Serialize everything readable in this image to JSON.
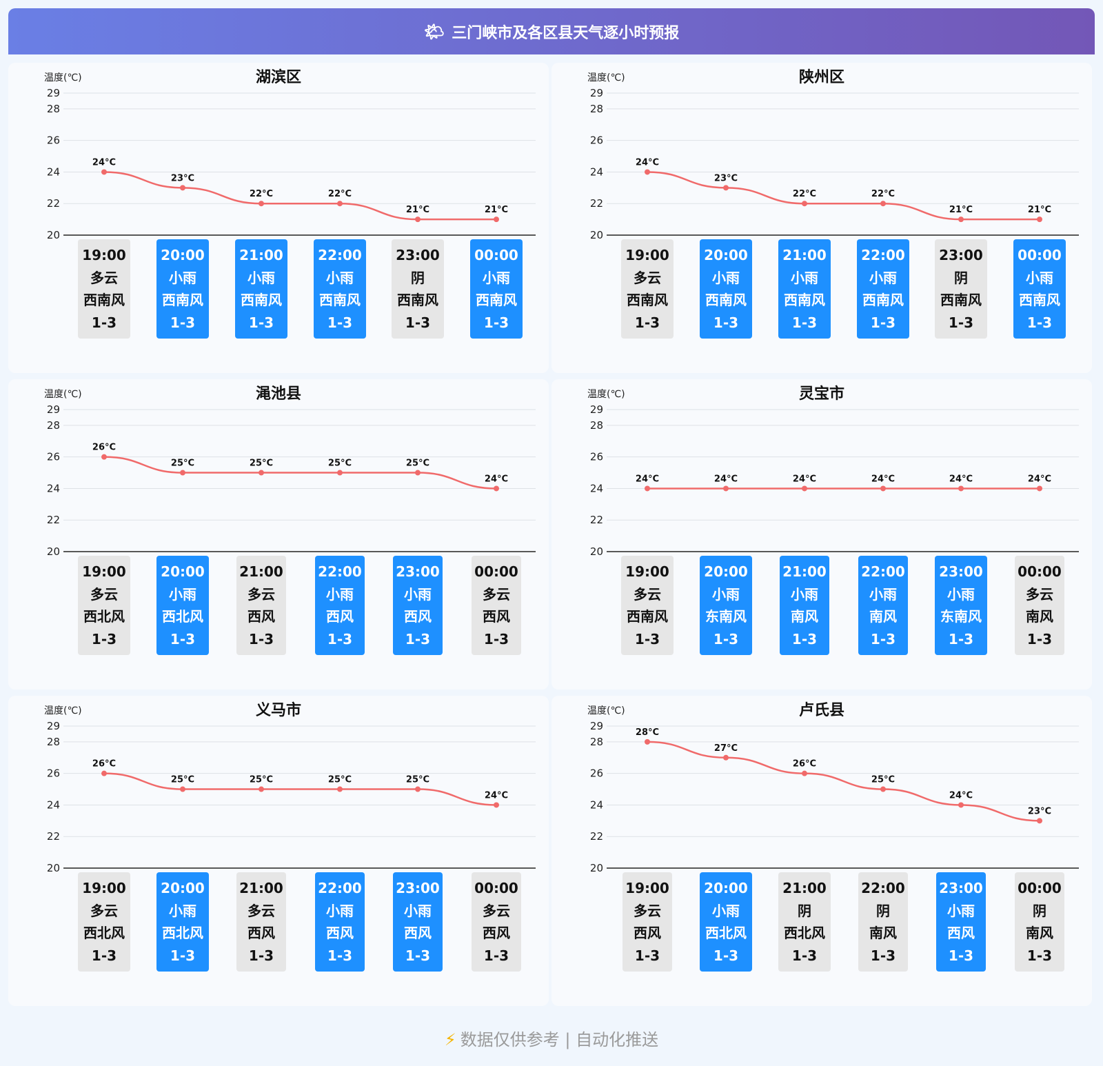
{
  "header": {
    "icon": "sun-cloud-icon",
    "title": "三门峡市及各区县天气逐小时预报"
  },
  "footer": {
    "icon": "lightning-icon",
    "text": "数据仅供参考 | 自动化推送"
  },
  "colors": {
    "line": "#f06a6a",
    "rain_tile": "#1e90ff",
    "other_tile": "#e6e6e6",
    "header_start": "#6a7fe5",
    "header_end": "#7357b7"
  },
  "chart_data": [
    {
      "type": "line",
      "title": "湖滨区",
      "ylabel": "温度(℃)",
      "ylim": [
        20,
        29
      ],
      "yticks": [
        20,
        22,
        24,
        26,
        28,
        29
      ],
      "x": [
        "19:00",
        "20:00",
        "21:00",
        "22:00",
        "23:00",
        "00:00"
      ],
      "values": [
        24,
        23,
        22,
        22,
        21,
        21
      ],
      "point_labels": [
        "24°C",
        "23°C",
        "22°C",
        "22°C",
        "21°C",
        "21°C"
      ],
      "weather": [
        "多云",
        "小雨",
        "小雨",
        "小雨",
        "阴",
        "小雨"
      ],
      "wind": [
        "西南风",
        "西南风",
        "西南风",
        "西南风",
        "西南风",
        "西南风"
      ],
      "wind_level": [
        "1-3",
        "1-3",
        "1-3",
        "1-3",
        "1-3",
        "1-3"
      ]
    },
    {
      "type": "line",
      "title": "陕州区",
      "ylabel": "温度(℃)",
      "ylim": [
        20,
        29
      ],
      "yticks": [
        20,
        22,
        24,
        26,
        28,
        29
      ],
      "x": [
        "19:00",
        "20:00",
        "21:00",
        "22:00",
        "23:00",
        "00:00"
      ],
      "values": [
        24,
        23,
        22,
        22,
        21,
        21
      ],
      "point_labels": [
        "24°C",
        "23°C",
        "22°C",
        "22°C",
        "21°C",
        "21°C"
      ],
      "weather": [
        "多云",
        "小雨",
        "小雨",
        "小雨",
        "阴",
        "小雨"
      ],
      "wind": [
        "西南风",
        "西南风",
        "西南风",
        "西南风",
        "西南风",
        "西南风"
      ],
      "wind_level": [
        "1-3",
        "1-3",
        "1-3",
        "1-3",
        "1-3",
        "1-3"
      ]
    },
    {
      "type": "line",
      "title": "渑池县",
      "ylabel": "温度(℃)",
      "ylim": [
        20,
        29
      ],
      "yticks": [
        20,
        22,
        24,
        26,
        28,
        29
      ],
      "x": [
        "19:00",
        "20:00",
        "21:00",
        "22:00",
        "23:00",
        "00:00"
      ],
      "values": [
        26,
        25,
        25,
        25,
        25,
        24
      ],
      "point_labels": [
        "26°C",
        "25°C",
        "25°C",
        "25°C",
        "25°C",
        "24°C"
      ],
      "weather": [
        "多云",
        "小雨",
        "多云",
        "小雨",
        "小雨",
        "多云"
      ],
      "wind": [
        "西北风",
        "西北风",
        "西风",
        "西风",
        "西风",
        "西风"
      ],
      "wind_level": [
        "1-3",
        "1-3",
        "1-3",
        "1-3",
        "1-3",
        "1-3"
      ]
    },
    {
      "type": "line",
      "title": "灵宝市",
      "ylabel": "温度(℃)",
      "ylim": [
        20,
        29
      ],
      "yticks": [
        20,
        22,
        24,
        26,
        28,
        29
      ],
      "x": [
        "19:00",
        "20:00",
        "21:00",
        "22:00",
        "23:00",
        "00:00"
      ],
      "values": [
        24,
        24,
        24,
        24,
        24,
        24
      ],
      "point_labels": [
        "24°C",
        "24°C",
        "24°C",
        "24°C",
        "24°C",
        "24°C"
      ],
      "weather": [
        "多云",
        "小雨",
        "小雨",
        "小雨",
        "小雨",
        "多云"
      ],
      "wind": [
        "西南风",
        "东南风",
        "南风",
        "南风",
        "东南风",
        "南风"
      ],
      "wind_level": [
        "1-3",
        "1-3",
        "1-3",
        "1-3",
        "1-3",
        "1-3"
      ]
    },
    {
      "type": "line",
      "title": "义马市",
      "ylabel": "温度(℃)",
      "ylim": [
        20,
        29
      ],
      "yticks": [
        20,
        22,
        24,
        26,
        28,
        29
      ],
      "x": [
        "19:00",
        "20:00",
        "21:00",
        "22:00",
        "23:00",
        "00:00"
      ],
      "values": [
        26,
        25,
        25,
        25,
        25,
        24
      ],
      "point_labels": [
        "26°C",
        "25°C",
        "25°C",
        "25°C",
        "25°C",
        "24°C"
      ],
      "weather": [
        "多云",
        "小雨",
        "多云",
        "小雨",
        "小雨",
        "多云"
      ],
      "wind": [
        "西北风",
        "西北风",
        "西风",
        "西风",
        "西风",
        "西风"
      ],
      "wind_level": [
        "1-3",
        "1-3",
        "1-3",
        "1-3",
        "1-3",
        "1-3"
      ]
    },
    {
      "type": "line",
      "title": "卢氏县",
      "ylabel": "温度(℃)",
      "ylim": [
        20,
        29
      ],
      "yticks": [
        20,
        22,
        24,
        26,
        28,
        29
      ],
      "x": [
        "19:00",
        "20:00",
        "21:00",
        "22:00",
        "23:00",
        "00:00"
      ],
      "values": [
        28,
        27,
        26,
        25,
        24,
        23
      ],
      "point_labels": [
        "28°C",
        "27°C",
        "26°C",
        "25°C",
        "24°C",
        "23°C"
      ],
      "weather": [
        "多云",
        "小雨",
        "阴",
        "阴",
        "小雨",
        "阴"
      ],
      "wind": [
        "西风",
        "西北风",
        "西北风",
        "南风",
        "西风",
        "南风"
      ],
      "wind_level": [
        "1-3",
        "1-3",
        "1-3",
        "1-3",
        "1-3",
        "1-3"
      ]
    }
  ]
}
